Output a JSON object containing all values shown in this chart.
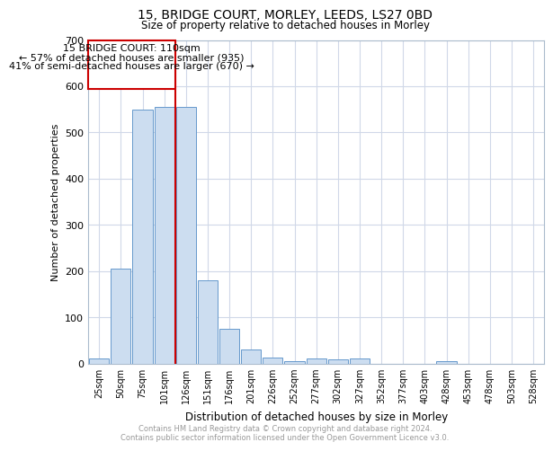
{
  "title1": "15, BRIDGE COURT, MORLEY, LEEDS, LS27 0BD",
  "title2": "Size of property relative to detached houses in Morley",
  "xlabel": "Distribution of detached houses by size in Morley",
  "ylabel": "Number of detached properties",
  "bin_labels": [
    "25sqm",
    "50sqm",
    "75sqm",
    "101sqm",
    "126sqm",
    "151sqm",
    "176sqm",
    "201sqm",
    "226sqm",
    "252sqm",
    "277sqm",
    "302sqm",
    "327sqm",
    "352sqm",
    "377sqm",
    "403sqm",
    "428sqm",
    "453sqm",
    "478sqm",
    "503sqm",
    "528sqm"
  ],
  "bar_heights": [
    10,
    205,
    550,
    555,
    555,
    180,
    75,
    30,
    12,
    5,
    10,
    8,
    10,
    0,
    0,
    0,
    5,
    0,
    0,
    0,
    0
  ],
  "bar_color": "#ccddf0",
  "bar_edge_color": "#6699cc",
  "vline_color": "#cc0000",
  "annotation_box_color": "#cc0000",
  "annotation_text_line1": "15 BRIDGE COURT: 110sqm",
  "annotation_text_line2": "← 57% of detached houses are smaller (935)",
  "annotation_text_line3": "41% of semi-detached houses are larger (670) →",
  "ylim": [
    0,
    700
  ],
  "yticks": [
    0,
    100,
    200,
    300,
    400,
    500,
    600,
    700
  ],
  "footnote1": "Contains HM Land Registry data © Crown copyright and database right 2024.",
  "footnote2": "Contains public sector information licensed under the Open Government Licence v3.0.",
  "grid_color": "#d0d8e8",
  "spine_color": "#aabbcc"
}
